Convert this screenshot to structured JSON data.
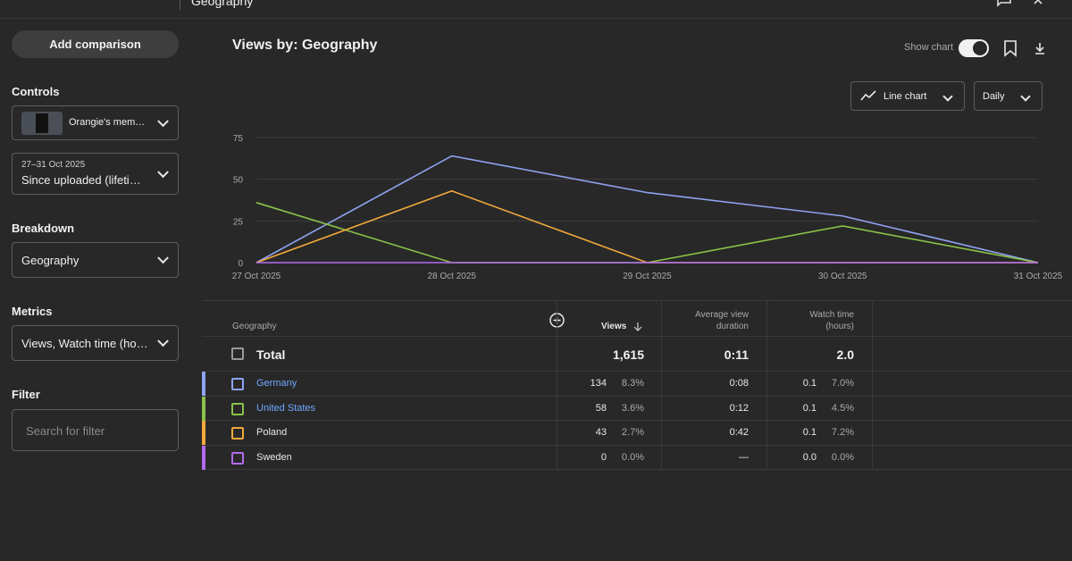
{
  "topbar": {
    "breadcrumb": "Geography"
  },
  "sidebar": {
    "add_comparison": "Add comparison",
    "controls_heading": "Controls",
    "content_select": "Orangie's mem…",
    "date_range_sub": "27–31 Oct 2025",
    "date_range_value": "Since uploaded (lifeti…",
    "breakdown_heading": "Breakdown",
    "breakdown_value": "Geography",
    "metrics_heading": "Metrics",
    "metrics_value": "Views, Watch time (ho…",
    "filter_heading": "Filter",
    "filter_placeholder": "Search for filter"
  },
  "main": {
    "title": "Views by: Geography",
    "show_chart_label": "Show chart",
    "show_chart_on": true,
    "chart_type_label": "Line chart",
    "interval_label": "Daily"
  },
  "chart_data": {
    "type": "line",
    "x": [
      "27 Oct 2025",
      "28 Oct 2025",
      "29 Oct 2025",
      "30 Oct 2025",
      "31 Oct 2025"
    ],
    "yticks": [
      0,
      25,
      50,
      75
    ],
    "ylim": [
      0,
      75
    ],
    "grid": true,
    "series": [
      {
        "name": "Germany",
        "color": "#8fa3f2",
        "values": [
          0,
          64,
          42,
          28,
          0
        ]
      },
      {
        "name": "United States",
        "color": "#8bc34a",
        "values": [
          36,
          0,
          0,
          22,
          0
        ]
      },
      {
        "name": "Poland",
        "color": "#f2a93b",
        "values": [
          0,
          43,
          0,
          0,
          0
        ]
      },
      {
        "name": "Sweden",
        "color": "#b36af0",
        "values": [
          0,
          0,
          0,
          0,
          0
        ]
      }
    ]
  },
  "table": {
    "headers": {
      "geography": "Geography",
      "views": "Views",
      "avd_1": "Average view",
      "avd_2": "duration",
      "wt_1": "Watch time",
      "wt_2": "(hours)"
    },
    "total": {
      "label": "Total",
      "views": "1,615",
      "avd": "0:11",
      "watch": "2.0"
    },
    "rows": [
      {
        "name": "Germany",
        "link": true,
        "color": "#8fa3f2",
        "views": "134",
        "views_pct": "8.3%",
        "avd": "0:08",
        "watch": "0.1",
        "watch_pct": "7.0%"
      },
      {
        "name": "United States",
        "link": true,
        "color": "#8bc34a",
        "views": "58",
        "views_pct": "3.6%",
        "avd": "0:12",
        "watch": "0.1",
        "watch_pct": "4.5%"
      },
      {
        "name": "Poland",
        "link": false,
        "color": "#f2a93b",
        "views": "43",
        "views_pct": "2.7%",
        "avd": "0:42",
        "watch": "0.1",
        "watch_pct": "7.2%"
      },
      {
        "name": "Sweden",
        "link": false,
        "color": "#b36af0",
        "views": "0",
        "views_pct": "0.0%",
        "avd": "—",
        "watch": "0.0",
        "watch_pct": "0.0%"
      }
    ]
  }
}
